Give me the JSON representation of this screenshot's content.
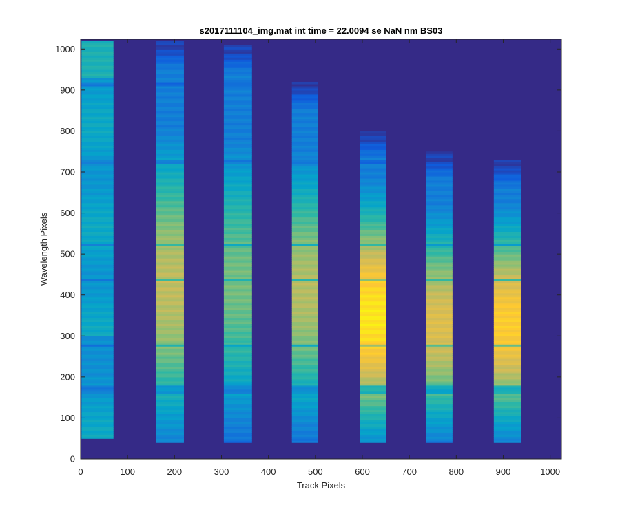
{
  "figure": {
    "background": "#ffffff"
  },
  "chart_data": {
    "type": "heatmap",
    "title": "s2017111104_img.mat int time = 22.0094 se  NaN nm BS03",
    "xlabel": "Track Pixels",
    "ylabel": "Wavelength Pixels",
    "xlim": [
      0,
      1024
    ],
    "ylim": [
      0,
      1024
    ],
    "xticks": [
      0,
      100,
      200,
      300,
      400,
      500,
      600,
      700,
      800,
      900,
      1000
    ],
    "yticks": [
      0,
      100,
      200,
      300,
      400,
      500,
      600,
      700,
      800,
      900,
      1000
    ],
    "grid": false,
    "colormap": "parula",
    "background_color": "#352a87",
    "colormap_stops": [
      "#352a87",
      "#0f5cdd",
      "#1481d6",
      "#06a4ca",
      "#2eb7a4",
      "#87bf77",
      "#d1bb59",
      "#fec832",
      "#f9fb0e"
    ],
    "tracks": [
      {
        "x_start": 2,
        "x_end": 70,
        "y_bottom": 50,
        "y_top": 1020,
        "peak_y": 520,
        "peak_value": 0.4,
        "notes": "uniform light blue"
      },
      {
        "x_start": 160,
        "x_end": 220,
        "y_bottom": 40,
        "y_top": 1020,
        "peak_y": 420,
        "peak_value": 0.72
      },
      {
        "x_start": 305,
        "x_end": 365,
        "y_bottom": 40,
        "y_top": 1010,
        "peak_y": 430,
        "peak_value": 0.6
      },
      {
        "x_start": 450,
        "x_end": 505,
        "y_bottom": 40,
        "y_top": 920,
        "peak_y": 410,
        "peak_value": 0.7
      },
      {
        "x_start": 595,
        "x_end": 650,
        "y_bottom": 40,
        "y_top": 800,
        "peak_y": 350,
        "peak_value": 0.95
      },
      {
        "x_start": 735,
        "x_end": 792,
        "y_bottom": 40,
        "y_top": 750,
        "peak_y": 330,
        "peak_value": 0.78
      },
      {
        "x_start": 880,
        "x_end": 938,
        "y_bottom": 40,
        "y_top": 730,
        "peak_y": 330,
        "peak_value": 0.88
      }
    ],
    "absorption_lines_y": [
      175,
      165,
      277,
      437,
      523,
      725,
      915
    ]
  }
}
